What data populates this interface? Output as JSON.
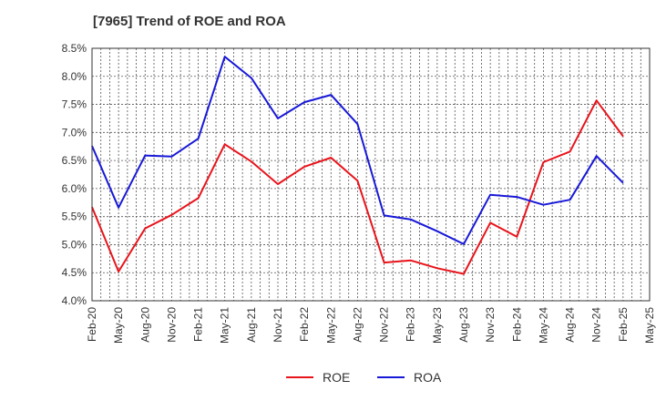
{
  "chart_data": {
    "type": "line",
    "title": "[7965]  Trend of ROE and ROA",
    "xlabel": "",
    "ylabel": "",
    "categories": [
      "Feb-20",
      "May-20",
      "Aug-20",
      "Nov-20",
      "Feb-21",
      "May-21",
      "Aug-21",
      "Nov-21",
      "Feb-22",
      "May-22",
      "Aug-22",
      "Nov-22",
      "Feb-23",
      "May-23",
      "Aug-23",
      "Nov-23",
      "Feb-24",
      "May-24",
      "Aug-24",
      "Nov-24",
      "Feb-25",
      "May-25"
    ],
    "ylim": [
      4.0,
      8.5
    ],
    "yticks": [
      "4.0%",
      "4.5%",
      "5.0%",
      "5.5%",
      "6.0%",
      "6.5%",
      "7.0%",
      "7.5%",
      "8.0%",
      "8.5%"
    ],
    "grid": true,
    "legend_position": "bottom",
    "series": [
      {
        "name": "ROE",
        "color": "#e8141b",
        "values": [
          5.67,
          4.52,
          5.29,
          5.53,
          5.83,
          6.79,
          6.48,
          6.08,
          6.39,
          6.55,
          6.14,
          4.68,
          4.72,
          4.58,
          4.48,
          5.39,
          5.14,
          6.47,
          6.66,
          7.57,
          6.93,
          null
        ]
      },
      {
        "name": "ROA",
        "color": "#1818d8",
        "values": [
          6.76,
          5.66,
          6.59,
          6.57,
          6.89,
          8.35,
          7.97,
          7.25,
          7.54,
          7.67,
          7.15,
          5.52,
          5.45,
          5.24,
          5.01,
          5.89,
          5.85,
          5.71,
          5.8,
          6.58,
          6.1,
          null
        ]
      }
    ]
  }
}
